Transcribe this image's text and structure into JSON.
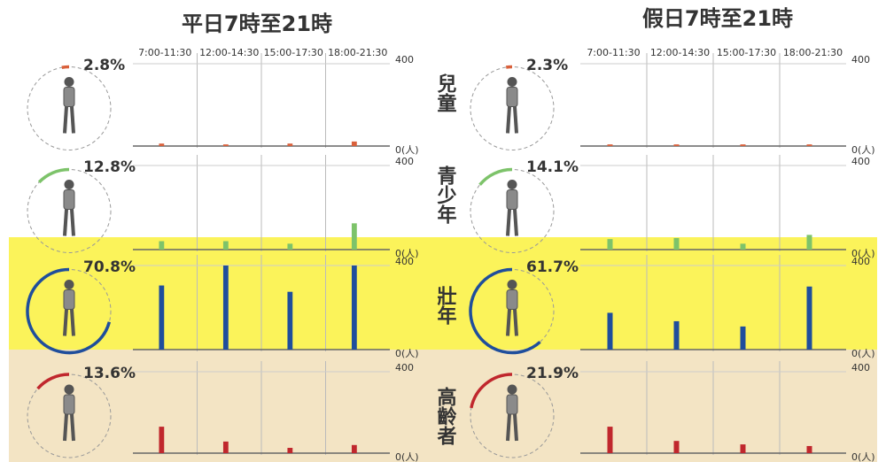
{
  "panels": [
    {
      "title": "平日7時至21時"
    },
    {
      "title": "假日7時至21時"
    }
  ],
  "groups": [
    "兒童",
    "青少年",
    "壯年",
    "高齡者"
  ],
  "chart_data": [
    {
      "type": "bar",
      "categories": [
        "7:00-11:30",
        "12:00-14:30",
        "15:00-17:30",
        "18:00-21:30"
      ],
      "values": [
        12,
        8,
        12,
        22
      ],
      "color": "#d9603b",
      "ylim": [
        0,
        400
      ],
      "yticks": [
        {
          "value": 0,
          "label": "0(人)"
        },
        400
      ],
      "share": 2.8,
      "share_label": "2.8%"
    },
    {
      "type": "bar",
      "values": [
        40,
        40,
        28,
        125
      ],
      "color": "#7dc36a",
      "ylim": [
        0,
        400
      ],
      "yticks": [
        {
          "value": 0,
          "label": "0(人)"
        },
        400
      ],
      "share": 12.8,
      "share_label": "12.8%"
    },
    {
      "type": "bar",
      "values": [
        305,
        400,
        275,
        400
      ],
      "color": "#1f4e9c",
      "ylim": [
        0,
        400
      ],
      "yticks": [
        {
          "value": 0,
          "label": "0(人)"
        },
        400
      ],
      "share": 70.8,
      "share_label": "70.8%"
    },
    {
      "type": "bar",
      "values": [
        130,
        57,
        26,
        40
      ],
      "color": "#c0272d",
      "ylim": [
        0,
        400
      ],
      "yticks": [
        {
          "value": 0,
          "label": "0(人)"
        },
        400
      ],
      "share": 13.6,
      "share_label": "13.6%"
    },
    {
      "type": "bar",
      "categories": [
        "7:00-11:30",
        "12:00-14:30",
        "15:00-17:30",
        "18:00-21:30"
      ],
      "values": [
        8,
        8,
        8,
        8
      ],
      "color": "#d9603b",
      "ylim": [
        0,
        400
      ],
      "yticks": [
        {
          "value": 0,
          "label": "0(人)"
        },
        400
      ],
      "share": 2.3,
      "share_label": "2.3%"
    },
    {
      "type": "bar",
      "values": [
        50,
        55,
        28,
        70
      ],
      "color": "#7dc36a",
      "ylim": [
        0,
        400
      ],
      "yticks": [
        {
          "value": 0,
          "label": "0(人)"
        },
        400
      ],
      "share": 14.1,
      "share_label": "14.1%"
    },
    {
      "type": "bar",
      "values": [
        175,
        135,
        110,
        300
      ],
      "color": "#1f4e9c",
      "ylim": [
        0,
        400
      ],
      "yticks": [
        {
          "value": 0,
          "label": "0(人)"
        },
        400
      ],
      "share": 61.7,
      "share_label": "61.7%"
    },
    {
      "type": "bar",
      "values": [
        130,
        60,
        43,
        35
      ],
      "color": "#c0272d",
      "ylim": [
        0,
        400
      ],
      "yticks": [
        {
          "value": 0,
          "label": "0(人)"
        },
        400
      ],
      "share": 21.9,
      "share_label": "21.9%"
    }
  ]
}
